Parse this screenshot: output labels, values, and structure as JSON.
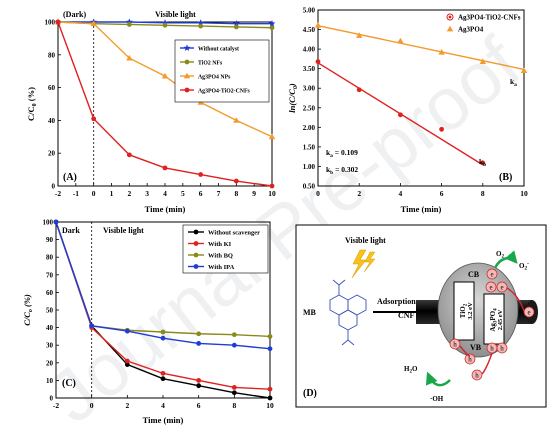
{
  "watermark": "Journal Pre-proof",
  "chart_data": [
    {
      "panel": "(A)",
      "type": "line",
      "xlabel": "Time (min)",
      "ylabel": "C/C0 (%)",
      "xlim": [
        -2,
        10
      ],
      "ylim": [
        0,
        100
      ],
      "xticks": [
        -2,
        -1,
        0,
        1,
        2,
        3,
        4,
        5,
        6,
        7,
        8,
        9,
        10
      ],
      "yticks": [
        0,
        20,
        40,
        60,
        80,
        100
      ],
      "annotations": [
        "(Dark)",
        "Visible light"
      ],
      "series": [
        {
          "name": "Without catalyst",
          "color": "#1f3cd8",
          "marker": "star",
          "x": [
            -2,
            0,
            2,
            4,
            6,
            8,
            10
          ],
          "values": [
            100,
            100,
            100,
            99.5,
            99.5,
            99,
            99
          ]
        },
        {
          "name": "TiO2 NFs",
          "color": "#8a8a1a",
          "marker": "circle",
          "x": [
            -2,
            0,
            2,
            4,
            6,
            8,
            10
          ],
          "values": [
            100,
            99,
            98.5,
            98,
            97.5,
            97,
            96.5
          ]
        },
        {
          "name": "Ag3PO4 NPs",
          "color": "#f39a2c",
          "marker": "triangle",
          "x": [
            -2,
            0,
            2,
            4,
            6,
            8,
            10
          ],
          "values": [
            100,
            99,
            78,
            67,
            51,
            40,
            30
          ]
        },
        {
          "name": "Ag3PO4-TiO2-CNFs",
          "color": "#e0211f",
          "marker": "circle",
          "x": [
            -2,
            0,
            2,
            4,
            6,
            8,
            10
          ],
          "values": [
            100,
            41,
            19,
            11,
            7,
            3,
            0
          ]
        }
      ]
    },
    {
      "panel": "(B)",
      "type": "scatter",
      "xlabel": "Time (min)",
      "ylabel": "ln(C/C0)",
      "xlim": [
        0,
        10
      ],
      "ylim": [
        0.5,
        5.0
      ],
      "xticks": [
        0,
        2,
        4,
        6,
        8,
        10
      ],
      "yticks": [
        0.5,
        1.0,
        1.5,
        2.0,
        2.5,
        3.0,
        3.5,
        4.0,
        4.5,
        5.0
      ],
      "annotations": [
        "ka = 0.109",
        "kb = 0.302",
        "ka",
        "kb"
      ],
      "series": [
        {
          "name": "Ag3PO4-TiO2-CNFs",
          "color": "#e0211f",
          "marker": "circle",
          "x": [
            0,
            2,
            4,
            6,
            8
          ],
          "values": [
            3.68,
            2.96,
            2.32,
            1.95,
            1.09
          ],
          "fit": [
            [
              0,
              3.65
            ],
            [
              8,
              1.04
            ]
          ]
        },
        {
          "name": "Ag3PO4",
          "color": "#f39a2c",
          "marker": "triangle",
          "x": [
            0,
            2,
            4,
            6,
            8,
            10
          ],
          "values": [
            4.61,
            4.35,
            4.21,
            3.92,
            3.68,
            3.45
          ],
          "fit": [
            [
              0,
              4.6
            ],
            [
              10,
              3.48
            ]
          ]
        }
      ]
    },
    {
      "panel": "(C)",
      "type": "line",
      "xlabel": "Time (min)",
      "ylabel": "C/Co (%)",
      "xlim": [
        -2,
        10
      ],
      "ylim": [
        0,
        100
      ],
      "xticks": [
        -2,
        0,
        2,
        4,
        6,
        8,
        10
      ],
      "yticks": [
        0,
        10,
        20,
        30,
        40,
        50,
        60,
        70,
        80,
        90,
        100
      ],
      "annotations": [
        "Dark",
        "Visible light"
      ],
      "series": [
        {
          "name": "Without scavenger",
          "color": "#000000",
          "marker": "circle",
          "x": [
            -2,
            0,
            2,
            4,
            6,
            8,
            10
          ],
          "values": [
            100,
            41,
            19,
            11,
            7,
            3,
            0
          ]
        },
        {
          "name": "With KI",
          "color": "#e0211f",
          "marker": "circle",
          "x": [
            -2,
            0,
            2,
            4,
            6,
            8,
            10
          ],
          "values": [
            100,
            40,
            21,
            14,
            10,
            6,
            5
          ]
        },
        {
          "name": "With BQ",
          "color": "#8a8a1a",
          "marker": "circle",
          "x": [
            -2,
            0,
            2,
            4,
            6,
            8,
            10
          ],
          "values": [
            100,
            41,
            38.5,
            37.5,
            36.5,
            36,
            35
          ]
        },
        {
          "name": "With IPA",
          "color": "#1f3cd8",
          "marker": "circle",
          "x": [
            -2,
            0,
            2,
            4,
            6,
            8,
            10
          ],
          "values": [
            100,
            41,
            38,
            34,
            31,
            30,
            28
          ]
        }
      ]
    }
  ],
  "diagram": {
    "panel": "(D)",
    "light_label": "Visible light",
    "mb_label": "MB",
    "adsorption_label": "Adsorption",
    "cnf_label": "CNF",
    "cb_label": "CB",
    "vb_label": "VB",
    "tio2_label": "TiO2",
    "tio2_gap": "3.2 eV",
    "ag_label": "Ag3PO4",
    "ag_gap": "2.45 eV",
    "electron": "e",
    "hole": "h",
    "o2_label": "O2",
    "superoxide_label": "O2·",
    "h2o_label": "H2O",
    "oh_label": "·OH"
  }
}
